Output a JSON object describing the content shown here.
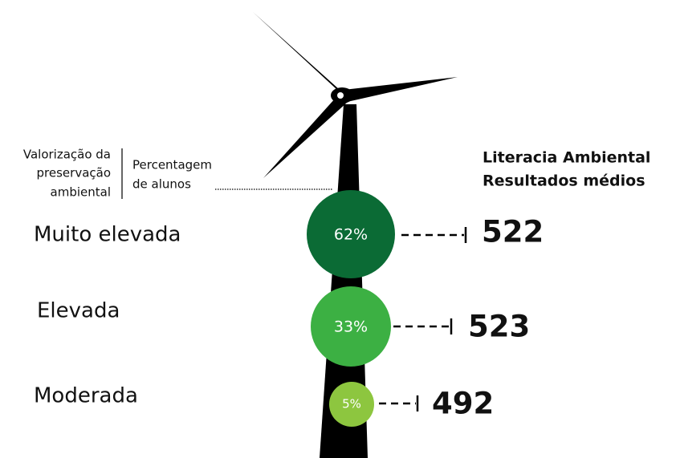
{
  "header": {
    "left": [
      "Valorização da",
      "preservação",
      "ambiental"
    ],
    "middle": [
      "Percentagem",
      "de alunos"
    ],
    "right": [
      "Literacia Ambiental",
      "Resultados médios"
    ]
  },
  "rows": [
    {
      "label": "Muito elevada",
      "percent": "62%",
      "score": 522
    },
    {
      "label": "Elevada",
      "percent": "33%",
      "score": 523
    },
    {
      "label": "Moderada",
      "percent": "5%",
      "score": 492
    }
  ]
}
